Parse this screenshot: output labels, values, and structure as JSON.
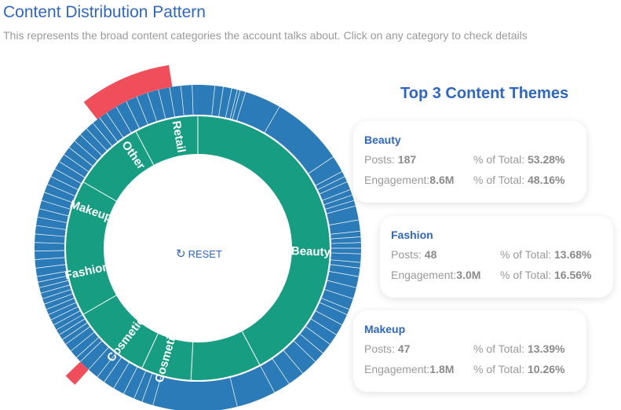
{
  "header": {
    "title": "Content Distribution Pattern",
    "subtitle": "This represents the broad content categories the account talks about. Click on any category to check details"
  },
  "sunburst": {
    "reset_label": "RESET",
    "reset_icon": "refresh-icon",
    "colors": {
      "inner": "#179e82",
      "outer": "#2c7bb9",
      "highlight": "#f04e5a"
    },
    "inner_categories": [
      "Beauty",
      "Cosmetic",
      "Cosmetics",
      "Fashion",
      "Makeup",
      "Other",
      "Retail"
    ]
  },
  "themes": {
    "title": "Top 3 Content Themes",
    "posts_label": "Posts:",
    "engagement_label": "Engagement:",
    "pct_label": "% of Total:",
    "cards": [
      {
        "name": "Beauty",
        "posts": "187",
        "posts_pct": "53.28%",
        "engagement": "8.6M",
        "engagement_pct": "48.16%"
      },
      {
        "name": "Fashion",
        "posts": "48",
        "posts_pct": "13.68%",
        "engagement": "3.0M",
        "engagement_pct": "16.56%"
      },
      {
        "name": "Makeup",
        "posts": "47",
        "posts_pct": "13.39%",
        "engagement": "1.8M",
        "engagement_pct": "10.26%"
      }
    ]
  }
}
